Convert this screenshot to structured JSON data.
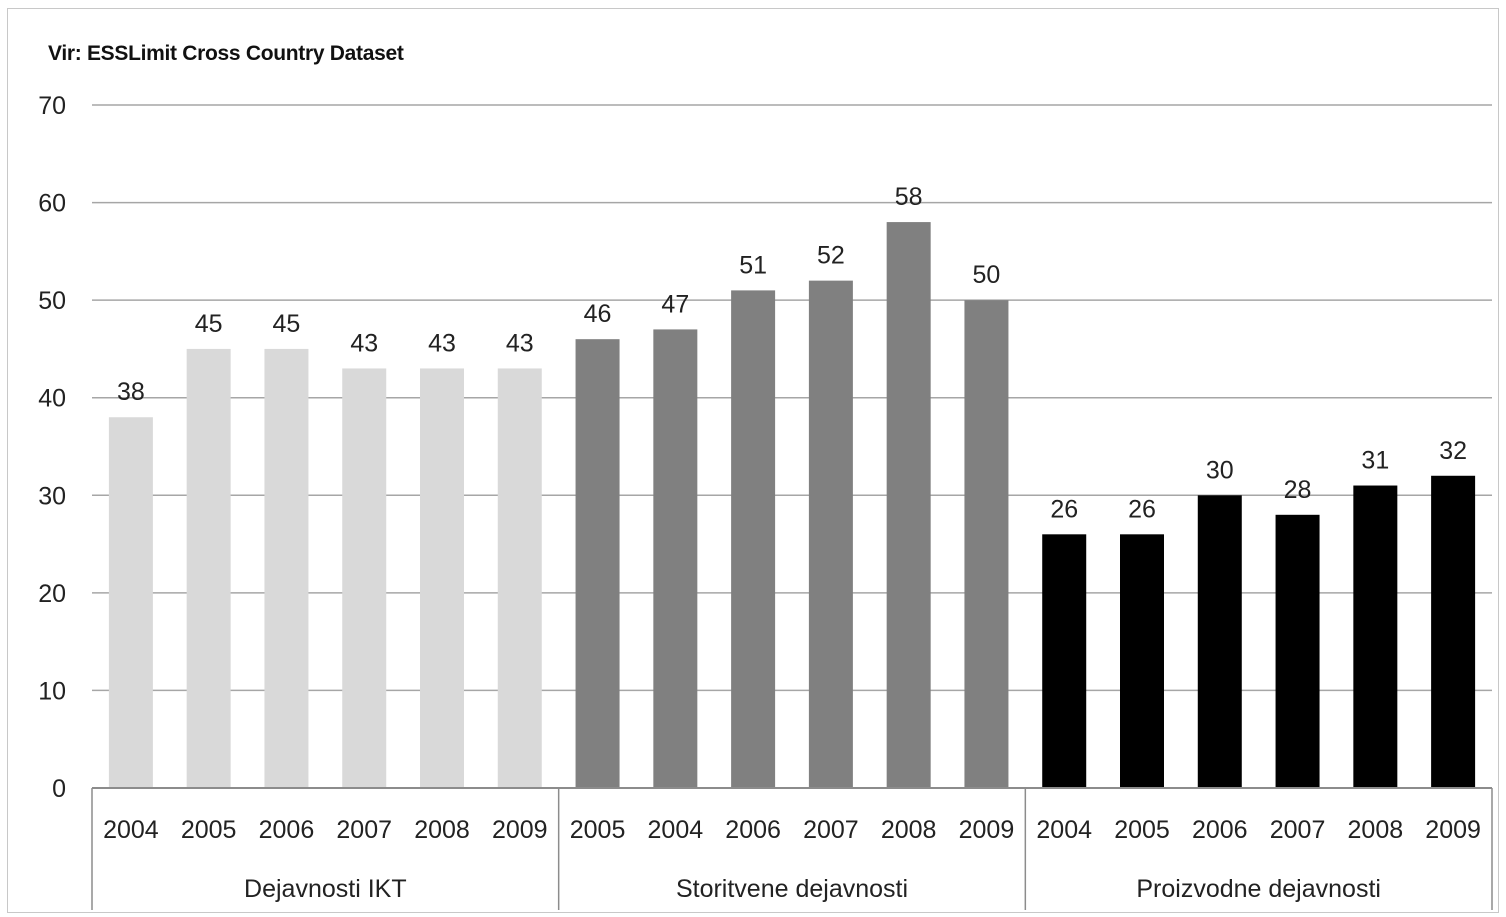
{
  "chart_data": {
    "type": "bar",
    "source_note": "Vir: ESSLimit Cross Country Dataset",
    "ylim": [
      0,
      70
    ],
    "yticks": [
      0,
      10,
      20,
      30,
      40,
      50,
      60,
      70
    ],
    "grid": true,
    "legend": "none",
    "groups": [
      {
        "name": "Dejavnosti IKT",
        "color": "#d9d9d9",
        "categories": [
          "2004",
          "2005",
          "2006",
          "2007",
          "2008",
          "2009"
        ],
        "values": [
          38,
          45,
          45,
          43,
          43,
          43
        ]
      },
      {
        "name": "Storitvene dejavnosti",
        "color": "#808080",
        "categories": [
          "2005",
          "2004",
          "2006",
          "2007",
          "2008",
          "2009"
        ],
        "values": [
          46,
          47,
          51,
          52,
          58,
          50
        ]
      },
      {
        "name": "Proizvodne dejavnosti",
        "color": "#000000",
        "categories": [
          "2004",
          "2005",
          "2006",
          "2007",
          "2008",
          "2009"
        ],
        "values": [
          26,
          26,
          30,
          28,
          31,
          32
        ]
      }
    ]
  }
}
